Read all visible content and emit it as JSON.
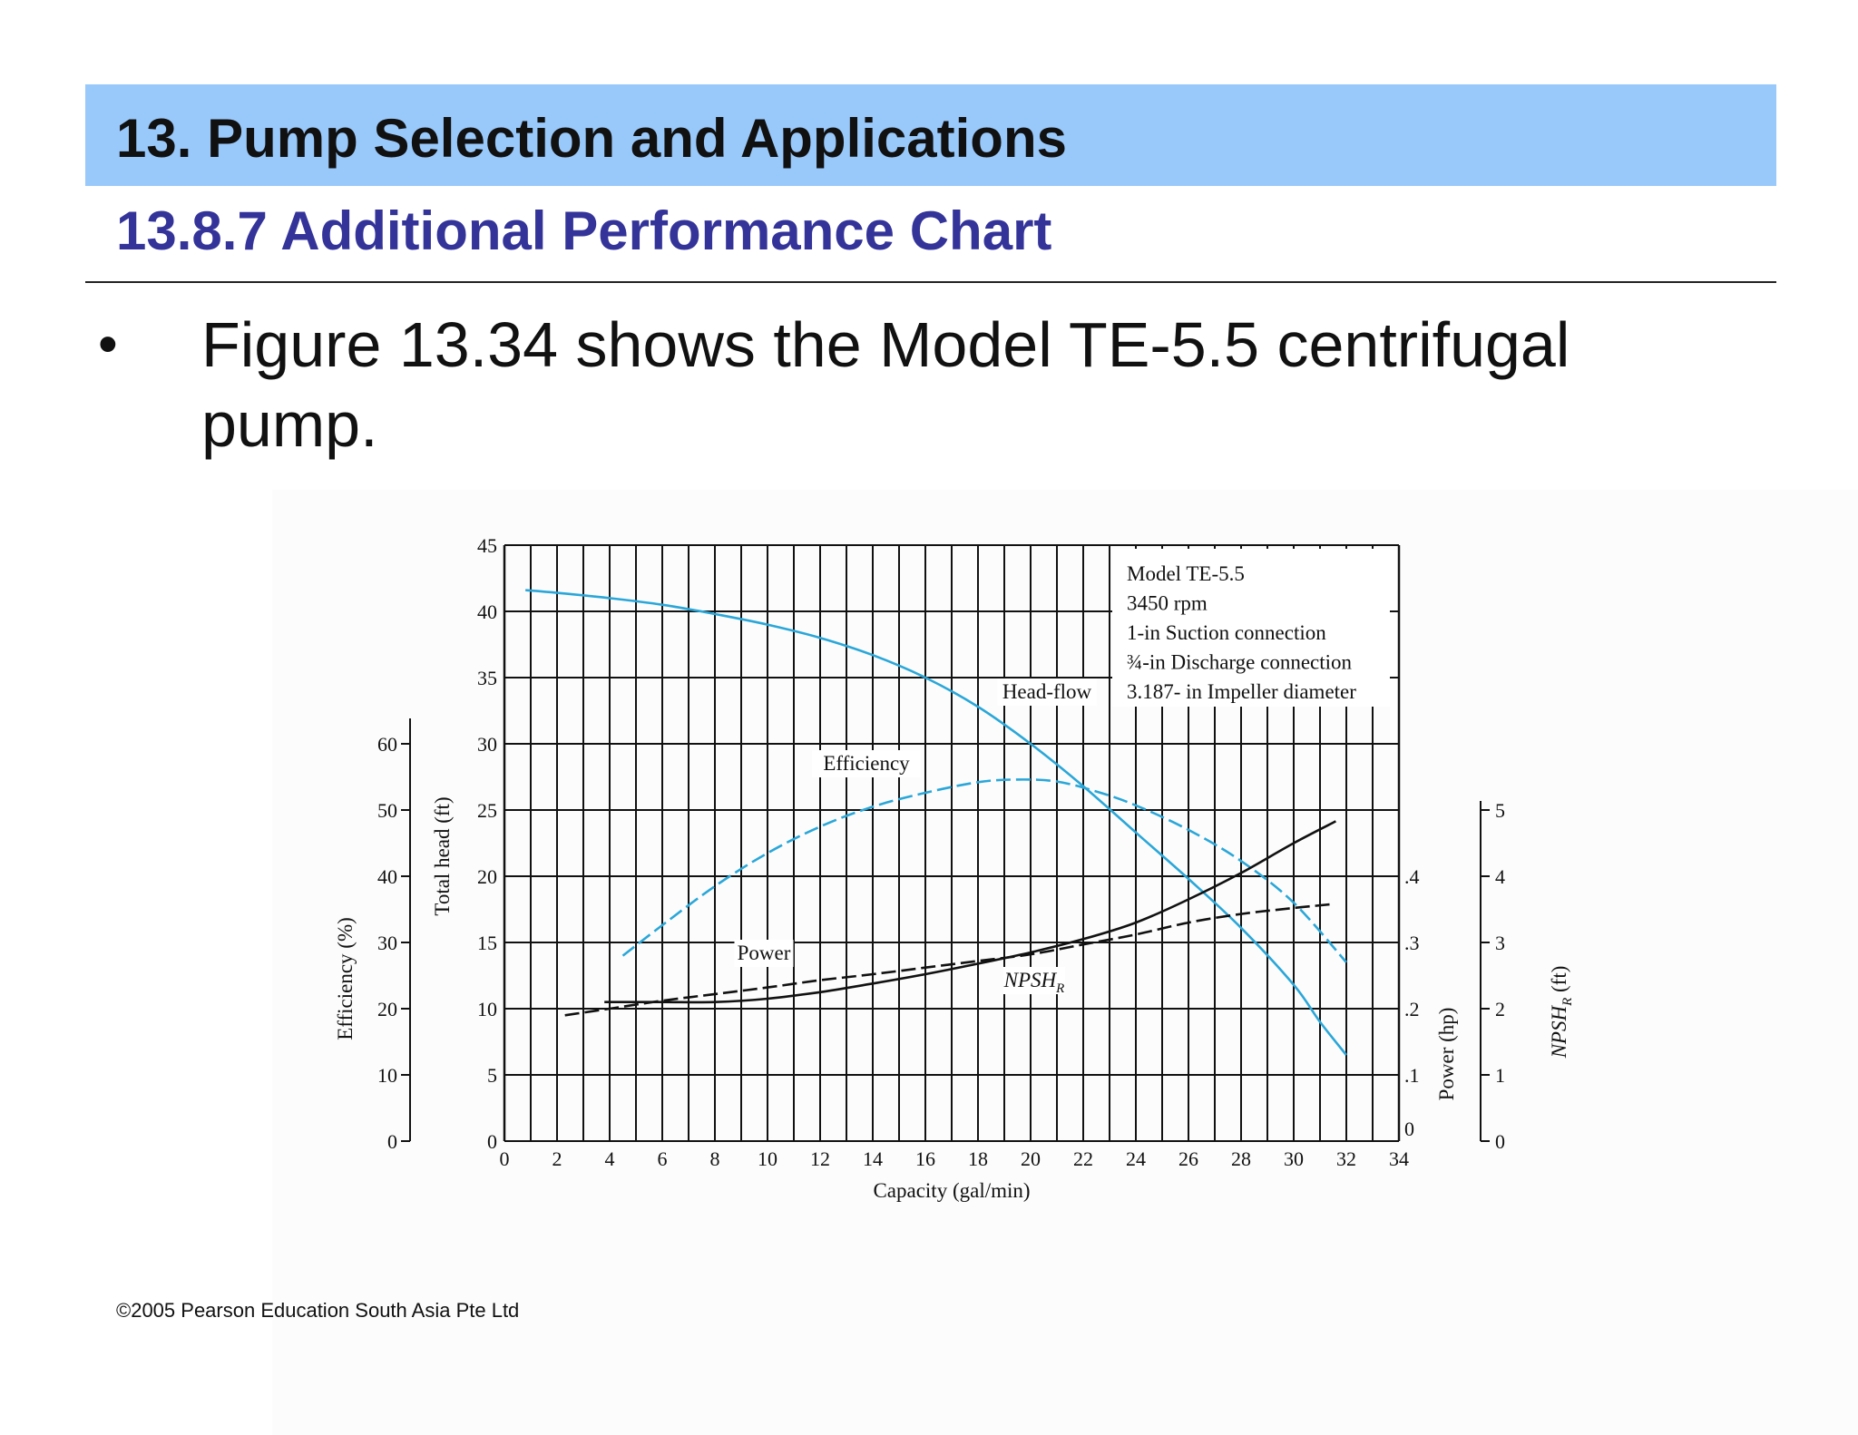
{
  "header": {
    "title": "13. Pump Selection and Applications",
    "subtitle": "13.8.7 Additional Performance Chart"
  },
  "body": {
    "bullet": "•",
    "text": "Figure 13.34 shows the Model TE-5.5 centrifugal pump."
  },
  "footer": {
    "copyright": "©2005 Pearson Education South Asia Pte Ltd"
  },
  "colors": {
    "title_band": "#99c9fb",
    "subtitle_text": "#333399",
    "curve_blue": "#2aa7d8",
    "curve_black": "#111111"
  },
  "chart_data": {
    "type": "line",
    "xlabel": "Capacity (gal/min)",
    "xlim": [
      0,
      34
    ],
    "x_ticks": [
      "0",
      "2",
      "4",
      "6",
      "8",
      "10",
      "12",
      "14",
      "16",
      "18",
      "20",
      "22",
      "24",
      "26",
      "28",
      "30",
      "32",
      "34"
    ],
    "axes": {
      "total_head": {
        "label": "Total head (ft)",
        "lim": [
          0,
          45
        ],
        "ticks": [
          "0",
          "5",
          "10",
          "15",
          "20",
          "25",
          "30",
          "35",
          "40",
          "45"
        ]
      },
      "efficiency": {
        "label": "Efficiency (%)",
        "lim": [
          0,
          60
        ],
        "ticks": [
          "0",
          "10",
          "20",
          "30",
          "40",
          "50",
          "60"
        ]
      },
      "power": {
        "label": "Power (hp)",
        "lim": [
          0,
          0.4
        ],
        "ticks": [
          "0",
          ".1",
          ".2",
          ".3",
          ".4"
        ]
      },
      "npshr": {
        "label": "NPSH",
        "label_sub": "R",
        "label_unit": "(ft)",
        "lim": [
          0,
          5
        ],
        "ticks": [
          "0",
          "1",
          "2",
          "3",
          "4",
          "5"
        ]
      }
    },
    "legend_box": {
      "lines": [
        "Model TE-5.5",
        "3450 rpm",
        "1-in Suction connection",
        "¾-in Discharge connection",
        "3.187- in Impeller diameter"
      ],
      "placement": "top-right"
    },
    "series": [
      {
        "name": "Head-flow",
        "axis": "total_head",
        "color": "#2aa7d8",
        "style": "solid",
        "points": [
          [
            0.8,
            41.6
          ],
          [
            2,
            41.4
          ],
          [
            4,
            41.0
          ],
          [
            6,
            40.5
          ],
          [
            8,
            39.8
          ],
          [
            10,
            39.0
          ],
          [
            12,
            38.0
          ],
          [
            14,
            36.7
          ],
          [
            16,
            35.0
          ],
          [
            18,
            32.8
          ],
          [
            20,
            30.0
          ],
          [
            22,
            26.8
          ],
          [
            24,
            23.3
          ],
          [
            26,
            19.8
          ],
          [
            28,
            16.1
          ],
          [
            30,
            11.8
          ],
          [
            31,
            9.0
          ],
          [
            32,
            6.5
          ]
        ]
      },
      {
        "name": "Efficiency",
        "axis": "efficiency",
        "color": "#2aa7d8",
        "style": "dashed",
        "points": [
          [
            4.5,
            28
          ],
          [
            6,
            32.6
          ],
          [
            8,
            38.5
          ],
          [
            10,
            43.5
          ],
          [
            12,
            47.5
          ],
          [
            14,
            50.5
          ],
          [
            16,
            52.6
          ],
          [
            18,
            54.2
          ],
          [
            19.5,
            54.6
          ],
          [
            21,
            54.3
          ],
          [
            22.5,
            52.8
          ],
          [
            24,
            50.7
          ],
          [
            26,
            47.0
          ],
          [
            28,
            42.3
          ],
          [
            30,
            36.0
          ],
          [
            32,
            27.0
          ]
        ]
      },
      {
        "name": "Power",
        "axis": "power",
        "color": "#111111",
        "style": "dashed",
        "points": [
          [
            2.3,
            0.19
          ],
          [
            4,
            0.2
          ],
          [
            6,
            0.212
          ],
          [
            8,
            0.222
          ],
          [
            10,
            0.232
          ],
          [
            12,
            0.243
          ],
          [
            14,
            0.252
          ],
          [
            16,
            0.262
          ],
          [
            18,
            0.272
          ],
          [
            20,
            0.282
          ],
          [
            22,
            0.297
          ],
          [
            24,
            0.312
          ],
          [
            26,
            0.33
          ],
          [
            28,
            0.343
          ],
          [
            30,
            0.352
          ],
          [
            31.5,
            0.358
          ]
        ]
      },
      {
        "name": "NPSH",
        "name_sub": "R",
        "axis": "npshr",
        "color": "#111111",
        "style": "solid",
        "points": [
          [
            3.8,
            2.1
          ],
          [
            6,
            2.1
          ],
          [
            8,
            2.1
          ],
          [
            10,
            2.15
          ],
          [
            12,
            2.25
          ],
          [
            14,
            2.38
          ],
          [
            16,
            2.52
          ],
          [
            18,
            2.68
          ],
          [
            20,
            2.85
          ],
          [
            22,
            3.05
          ],
          [
            24,
            3.3
          ],
          [
            26,
            3.65
          ],
          [
            28,
            4.05
          ],
          [
            30,
            4.5
          ],
          [
            31.6,
            4.83
          ]
        ]
      }
    ],
    "annotations": [
      {
        "text": "Head-flow",
        "series": "Head-flow"
      },
      {
        "text": "Efficiency",
        "series": "Efficiency"
      },
      {
        "text": "Power",
        "series": "Power"
      },
      {
        "text": "NPSH",
        "sub": "R",
        "series": "NPSH"
      }
    ]
  }
}
